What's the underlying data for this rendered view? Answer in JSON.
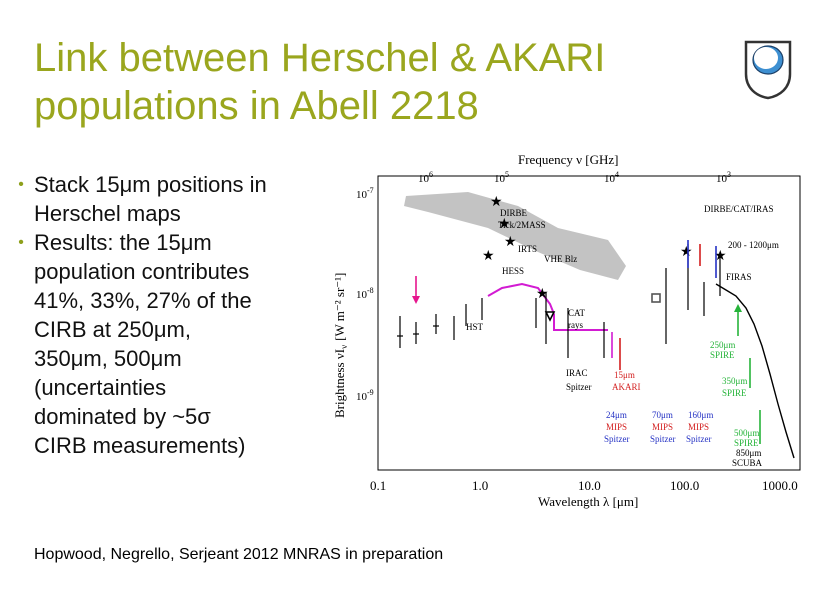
{
  "slide": {
    "title_line1": "Link between Herschel & AKARI",
    "title_line2": "populations in Abell 2218",
    "logo_icon": "open-university-shield-icon",
    "accent_color": "#9aa61e",
    "bullets": [
      {
        "text": "Stack 15μm positions in\nHerschel maps"
      },
      {
        "text": "Results: the 15μm\npopulation contributes\n41%, 33%, 27% of the\nCIRB at 250μm,\n350μm, 500μm\n(uncertainties\ndominated by ~5σ\nCIRB measurements)"
      }
    ],
    "citation": "Hopwood, Negrello, Serjeant 2012 MNRAS in preparation"
  },
  "figure": {
    "top_axis_label": "Frequency ν [GHz]",
    "bottom_axis_label": "Wavelength λ [μm]",
    "y_axis_label_main": "Brightness νI",
    "y_axis_label_sub": "ν",
    "y_axis_label_units": "[W m⁻² sr⁻¹]",
    "top_ticks": [
      {
        "base": "10",
        "exp": "6"
      },
      {
        "base": "10",
        "exp": "5"
      },
      {
        "base": "10",
        "exp": "4"
      },
      {
        "base": "10",
        "exp": "3"
      }
    ],
    "y_ticks": [
      {
        "base": "10",
        "exp": "-7"
      },
      {
        "base": "10",
        "exp": "-8"
      },
      {
        "base": "10",
        "exp": "-9"
      }
    ],
    "x_ticks": [
      "0.1",
      "1.0",
      "10.0",
      "100.0",
      "1000.0"
    ],
    "labels": {
      "dirbe": "DIRBE",
      "zodi": "Tick/2MASS",
      "irts": "IRTS",
      "hess": "HESS",
      "vhe": "VHE Blz",
      "hst": "HST",
      "cat": "CAT",
      "rays": "rays",
      "irac": "IRAC",
      "spitzer": "Spitzer",
      "akari_15": "15μm",
      "akari": "AKARI",
      "dirbe_cat": "DIRBE/CAT/IRAS",
      "range": "200 - 1200μm",
      "firas": "FIRAS",
      "spire250_a": "250μm",
      "spire250_b": "SPIRE",
      "spire350_a": "350μm",
      "spire350_b": "SPIRE",
      "spire500_a": "500μm",
      "spire500_b": "SPIRE",
      "scuba_a": "850μm",
      "scuba_b": "SCUBA",
      "mips24_a": "24μm",
      "mips24_b": "MIPS",
      "mips24_c": "Spitzer",
      "mips70_a": "70μm",
      "mips70_b": "MIPS",
      "mips70_c": "Spitzer",
      "mips160_a": "160μm",
      "mips160_b": "MIPS",
      "mips160_c": "Spitzer"
    }
  }
}
